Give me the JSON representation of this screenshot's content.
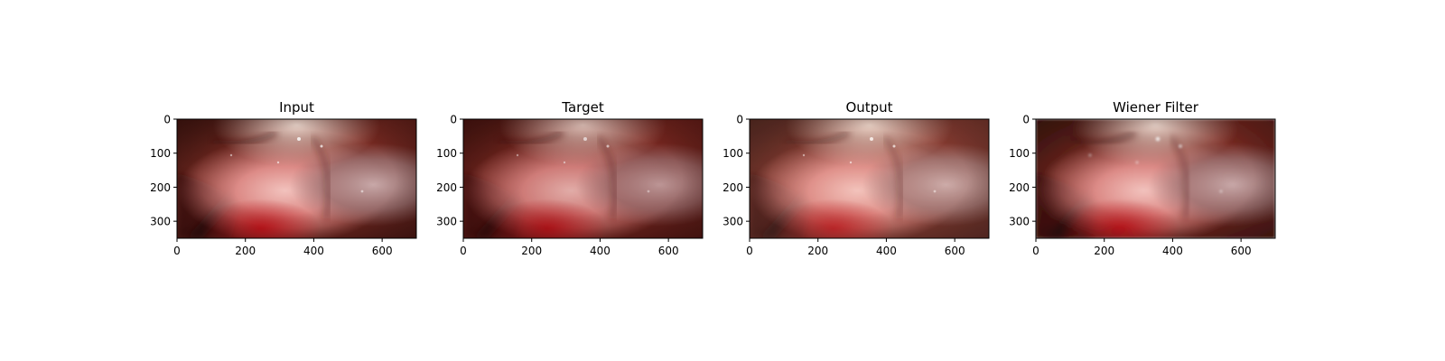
{
  "figure": {
    "panels": [
      {
        "title": "Input",
        "xticks": [
          "0",
          "200",
          "400",
          "600"
        ],
        "yticks": [
          "0",
          "100",
          "200",
          "300"
        ]
      },
      {
        "title": "Target",
        "xticks": [
          "0",
          "200",
          "400",
          "600"
        ],
        "yticks": [
          "0",
          "100",
          "200",
          "300"
        ]
      },
      {
        "title": "Output",
        "xticks": [
          "0",
          "200",
          "400",
          "600"
        ],
        "yticks": [
          "0",
          "100",
          "200",
          "300"
        ]
      },
      {
        "title": "Wiener Filter",
        "xticks": [
          "0",
          "200",
          "400",
          "600"
        ],
        "yticks": [
          "0",
          "100",
          "200",
          "300"
        ]
      }
    ],
    "image_extent": {
      "x": [
        0,
        700
      ],
      "y": [
        0,
        350
      ]
    },
    "image_content": "laparoscopic-surgery-tissue"
  }
}
